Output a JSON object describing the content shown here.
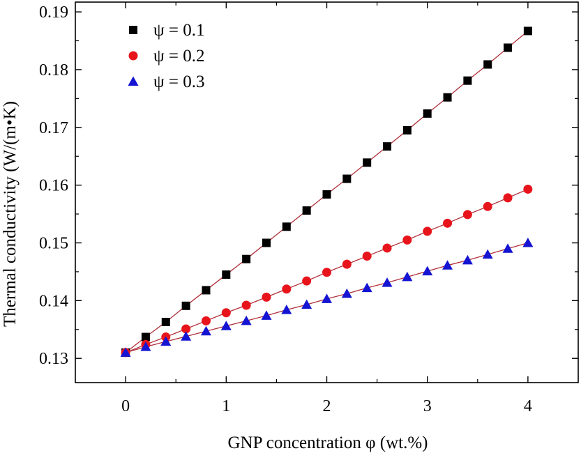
{
  "chart_data": {
    "type": "scatter",
    "title": "",
    "xlabel": "GNP concentration φ (wt.%)",
    "ylabel": "Thermal conductivity (W/(m•K)",
    "xlim": [
      -0.5,
      4.5
    ],
    "ylim": [
      0.1258,
      0.1917
    ],
    "x_ticks": [
      0,
      1,
      2,
      3,
      4
    ],
    "x_tick_labels": [
      "0",
      "1",
      "2",
      "3",
      "4"
    ],
    "y_ticks": [
      0.13,
      0.14,
      0.15,
      0.16,
      0.17,
      0.18,
      0.19
    ],
    "y_tick_labels": [
      "0.13",
      "0.14",
      "0.15",
      "0.16",
      "0.17",
      "0.18",
      "0.19"
    ],
    "grid": false,
    "legend_position": "top-left",
    "x": [
      0,
      0.2,
      0.4,
      0.6,
      0.8,
      1.0,
      1.2,
      1.4,
      1.6,
      1.8,
      2.0,
      2.2,
      2.4,
      2.6,
      2.8,
      3.0,
      3.2,
      3.4,
      3.6,
      3.8,
      4.0
    ],
    "series": [
      {
        "name": "ψ = 0.1",
        "marker": "square",
        "color": "#000000",
        "values": [
          0.131,
          0.1337,
          0.1363,
          0.1391,
          0.1418,
          0.1445,
          0.1472,
          0.15,
          0.1528,
          0.1556,
          0.1584,
          0.1611,
          0.1639,
          0.1667,
          0.1695,
          0.1724,
          0.1752,
          0.1781,
          0.1809,
          0.1838,
          0.1867
        ]
      },
      {
        "name": "ψ = 0.2",
        "marker": "circle",
        "color": "#e8141c",
        "values": [
          0.131,
          0.1324,
          0.1337,
          0.1351,
          0.1365,
          0.1379,
          0.1392,
          0.1406,
          0.142,
          0.1434,
          0.1449,
          0.1463,
          0.1477,
          0.1491,
          0.1505,
          0.152,
          0.1534,
          0.1549,
          0.1563,
          0.1578,
          0.1593
        ]
      },
      {
        "name": "ψ = 0.3",
        "marker": "triangle",
        "color": "#1414d2",
        "values": [
          0.131,
          0.132,
          0.1329,
          0.1338,
          0.1347,
          0.1356,
          0.1365,
          0.1374,
          0.1384,
          0.1393,
          0.1403,
          0.1412,
          0.1422,
          0.1431,
          0.1441,
          0.1451,
          0.1461,
          0.147,
          0.148,
          0.149,
          0.15
        ]
      }
    ],
    "fit_line_color": "#b0303a"
  }
}
